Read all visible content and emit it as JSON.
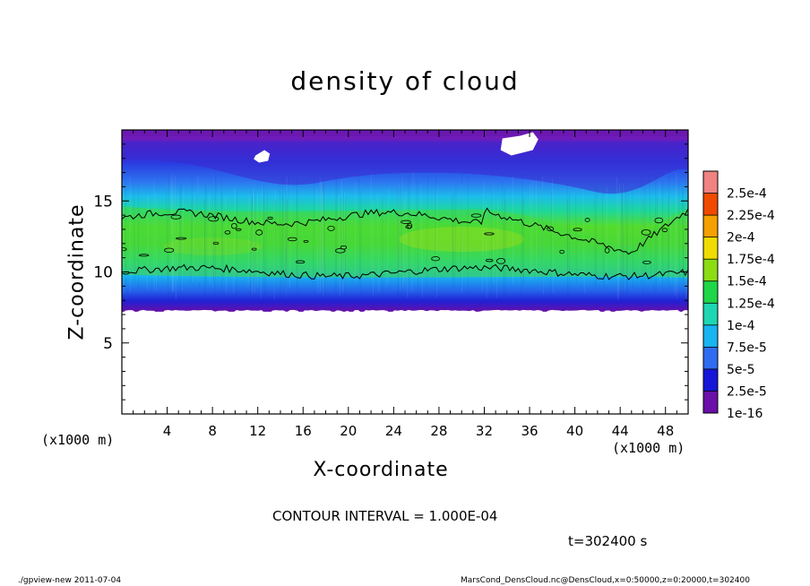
{
  "chart_data": {
    "type": "heatmap",
    "title": "density of cloud",
    "xlabel": "X-coordinate",
    "ylabel": "Z-coordinate",
    "x_unit_left": "(x1000 m)",
    "x_unit_right": "(x1000 m)",
    "xlim": [
      0,
      50
    ],
    "ylim": [
      0,
      20
    ],
    "x_ticks": [
      4,
      8,
      12,
      16,
      20,
      24,
      28,
      32,
      36,
      40,
      44,
      48
    ],
    "x_tick_labels": [
      "4",
      "8",
      "12",
      "16",
      "20",
      "24",
      "28",
      "32",
      "36",
      "40",
      "44",
      "48"
    ],
    "y_ticks": [
      5,
      10,
      15
    ],
    "y_tick_labels": [
      "5",
      "10",
      "15"
    ],
    "colorbar_levels": [
      "1e-16",
      "2.5e-5",
      "5e-5",
      "7.5e-5",
      "1e-4",
      "1.25e-4",
      "1.5e-4",
      "1.75e-4",
      "2e-4",
      "2.25e-4",
      "2.5e-4"
    ],
    "colorbar_colors": [
      "#6a0fa8",
      "#1616d8",
      "#2f6cf0",
      "#18b4f0",
      "#1ed7b2",
      "#1ed648",
      "#8cdc14",
      "#f0dc00",
      "#f4a000",
      "#f04a00",
      "#f08282"
    ],
    "cloud_layer": {
      "base_z": 7.2,
      "top_z": 19.7,
      "core_z_range": [
        9.6,
        14.6
      ],
      "contour_level": "1e-4"
    },
    "contour_interval_text": "CONTOUR INTERVAL = 1.000E-04",
    "time_text": "t=302400 s"
  },
  "footer": {
    "left": "./gpview-new  2011-07-04",
    "right": "MarsCond_DensCloud.nc@DensCloud,x=0:50000,z=0:20000,t=302400"
  }
}
